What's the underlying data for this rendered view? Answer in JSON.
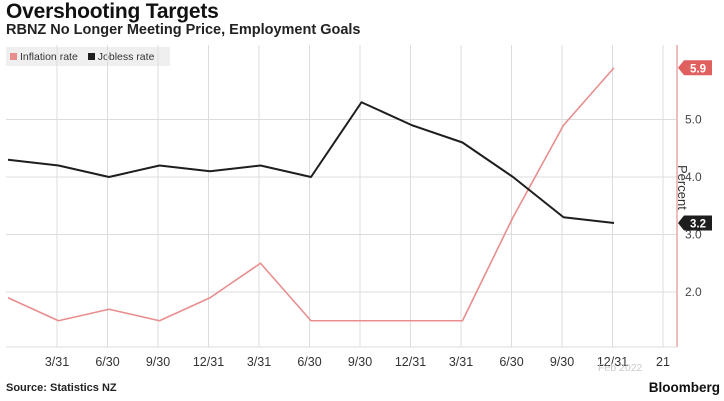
{
  "header": {
    "title": "Overshooting Targets",
    "subtitle": "RBNZ No Longer Meeting Price, Employment Goals"
  },
  "footer": {
    "source": "Source: Statistics NZ",
    "brand": "Bloomberg",
    "watermark": "Feb 2022"
  },
  "colors": {
    "inflation": "#e88e8e",
    "jobless": "#1e1e1e",
    "inflation_tag": "#e06060",
    "grid": "#dcdcdc",
    "axis": "#e9a8a8"
  },
  "chart_data": {
    "type": "line",
    "ylabel": "Percent",
    "ylim": [
      1.0,
      6.2
    ],
    "yticks": [
      2.0,
      3.0,
      4.0,
      5.0
    ],
    "grid": true,
    "legend_position": "top-left",
    "x_tick_labels": [
      "3/31",
      "6/30",
      "9/30",
      "12/31",
      "3/31",
      "6/30",
      "9/30",
      "12/31",
      "3/31",
      "6/30",
      "9/30",
      "12/31",
      "21"
    ],
    "series": [
      {
        "name": "Inflation rate",
        "color": "#e88e8e",
        "values": [
          1.9,
          1.5,
          1.7,
          1.5,
          1.9,
          2.5,
          1.5,
          1.5,
          1.5,
          1.5,
          3.3,
          4.9,
          5.9
        ],
        "last_label": "5.9"
      },
      {
        "name": "Jobless rate",
        "color": "#1e1e1e",
        "values": [
          4.3,
          4.2,
          4.0,
          4.2,
          4.1,
          4.2,
          4.0,
          5.3,
          4.9,
          4.6,
          4.0,
          3.3,
          3.2
        ],
        "last_label": "3.2"
      }
    ]
  }
}
